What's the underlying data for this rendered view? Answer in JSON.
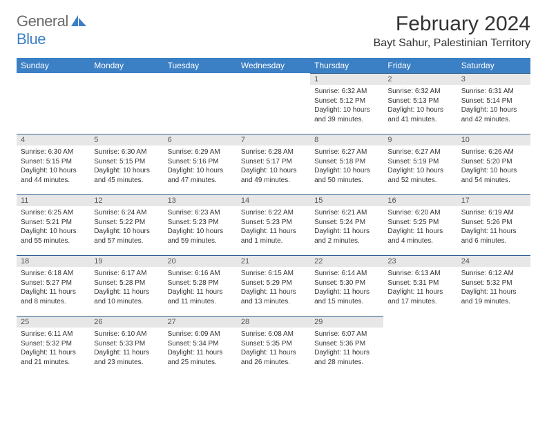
{
  "brand": {
    "general": "General",
    "blue": "Blue"
  },
  "title": "February 2024",
  "location": "Bayt Sahur, Palestinian Territory",
  "weekdays": [
    "Sunday",
    "Monday",
    "Tuesday",
    "Wednesday",
    "Thursday",
    "Friday",
    "Saturday"
  ],
  "style": {
    "header_bg": "#3b7fc4",
    "header_fg": "#ffffff",
    "dayhead_bg": "#e7e7e7",
    "body_bg": "#ffffff",
    "text": "#333333",
    "logo_gray": "#6b6b6b",
    "logo_blue": "#3b7fc4",
    "month_fontsize": 30,
    "location_fontsize": 16,
    "weekday_fontsize": 12,
    "daynum_fontsize": 11,
    "body_fontsize": 10
  },
  "grid": [
    [
      null,
      null,
      null,
      null,
      {
        "n": "1",
        "sr": "Sunrise: 6:32 AM",
        "ss": "Sunset: 5:12 PM",
        "dl": "Daylight: 10 hours and 39 minutes."
      },
      {
        "n": "2",
        "sr": "Sunrise: 6:32 AM",
        "ss": "Sunset: 5:13 PM",
        "dl": "Daylight: 10 hours and 41 minutes."
      },
      {
        "n": "3",
        "sr": "Sunrise: 6:31 AM",
        "ss": "Sunset: 5:14 PM",
        "dl": "Daylight: 10 hours and 42 minutes."
      }
    ],
    [
      {
        "n": "4",
        "sr": "Sunrise: 6:30 AM",
        "ss": "Sunset: 5:15 PM",
        "dl": "Daylight: 10 hours and 44 minutes."
      },
      {
        "n": "5",
        "sr": "Sunrise: 6:30 AM",
        "ss": "Sunset: 5:15 PM",
        "dl": "Daylight: 10 hours and 45 minutes."
      },
      {
        "n": "6",
        "sr": "Sunrise: 6:29 AM",
        "ss": "Sunset: 5:16 PM",
        "dl": "Daylight: 10 hours and 47 minutes."
      },
      {
        "n": "7",
        "sr": "Sunrise: 6:28 AM",
        "ss": "Sunset: 5:17 PM",
        "dl": "Daylight: 10 hours and 49 minutes."
      },
      {
        "n": "8",
        "sr": "Sunrise: 6:27 AM",
        "ss": "Sunset: 5:18 PM",
        "dl": "Daylight: 10 hours and 50 minutes."
      },
      {
        "n": "9",
        "sr": "Sunrise: 6:27 AM",
        "ss": "Sunset: 5:19 PM",
        "dl": "Daylight: 10 hours and 52 minutes."
      },
      {
        "n": "10",
        "sr": "Sunrise: 6:26 AM",
        "ss": "Sunset: 5:20 PM",
        "dl": "Daylight: 10 hours and 54 minutes."
      }
    ],
    [
      {
        "n": "11",
        "sr": "Sunrise: 6:25 AM",
        "ss": "Sunset: 5:21 PM",
        "dl": "Daylight: 10 hours and 55 minutes."
      },
      {
        "n": "12",
        "sr": "Sunrise: 6:24 AM",
        "ss": "Sunset: 5:22 PM",
        "dl": "Daylight: 10 hours and 57 minutes."
      },
      {
        "n": "13",
        "sr": "Sunrise: 6:23 AM",
        "ss": "Sunset: 5:23 PM",
        "dl": "Daylight: 10 hours and 59 minutes."
      },
      {
        "n": "14",
        "sr": "Sunrise: 6:22 AM",
        "ss": "Sunset: 5:23 PM",
        "dl": "Daylight: 11 hours and 1 minute."
      },
      {
        "n": "15",
        "sr": "Sunrise: 6:21 AM",
        "ss": "Sunset: 5:24 PM",
        "dl": "Daylight: 11 hours and 2 minutes."
      },
      {
        "n": "16",
        "sr": "Sunrise: 6:20 AM",
        "ss": "Sunset: 5:25 PM",
        "dl": "Daylight: 11 hours and 4 minutes."
      },
      {
        "n": "17",
        "sr": "Sunrise: 6:19 AM",
        "ss": "Sunset: 5:26 PM",
        "dl": "Daylight: 11 hours and 6 minutes."
      }
    ],
    [
      {
        "n": "18",
        "sr": "Sunrise: 6:18 AM",
        "ss": "Sunset: 5:27 PM",
        "dl": "Daylight: 11 hours and 8 minutes."
      },
      {
        "n": "19",
        "sr": "Sunrise: 6:17 AM",
        "ss": "Sunset: 5:28 PM",
        "dl": "Daylight: 11 hours and 10 minutes."
      },
      {
        "n": "20",
        "sr": "Sunrise: 6:16 AM",
        "ss": "Sunset: 5:28 PM",
        "dl": "Daylight: 11 hours and 11 minutes."
      },
      {
        "n": "21",
        "sr": "Sunrise: 6:15 AM",
        "ss": "Sunset: 5:29 PM",
        "dl": "Daylight: 11 hours and 13 minutes."
      },
      {
        "n": "22",
        "sr": "Sunrise: 6:14 AM",
        "ss": "Sunset: 5:30 PM",
        "dl": "Daylight: 11 hours and 15 minutes."
      },
      {
        "n": "23",
        "sr": "Sunrise: 6:13 AM",
        "ss": "Sunset: 5:31 PM",
        "dl": "Daylight: 11 hours and 17 minutes."
      },
      {
        "n": "24",
        "sr": "Sunrise: 6:12 AM",
        "ss": "Sunset: 5:32 PM",
        "dl": "Daylight: 11 hours and 19 minutes."
      }
    ],
    [
      {
        "n": "25",
        "sr": "Sunrise: 6:11 AM",
        "ss": "Sunset: 5:32 PM",
        "dl": "Daylight: 11 hours and 21 minutes."
      },
      {
        "n": "26",
        "sr": "Sunrise: 6:10 AM",
        "ss": "Sunset: 5:33 PM",
        "dl": "Daylight: 11 hours and 23 minutes."
      },
      {
        "n": "27",
        "sr": "Sunrise: 6:09 AM",
        "ss": "Sunset: 5:34 PM",
        "dl": "Daylight: 11 hours and 25 minutes."
      },
      {
        "n": "28",
        "sr": "Sunrise: 6:08 AM",
        "ss": "Sunset: 5:35 PM",
        "dl": "Daylight: 11 hours and 26 minutes."
      },
      {
        "n": "29",
        "sr": "Sunrise: 6:07 AM",
        "ss": "Sunset: 5:36 PM",
        "dl": "Daylight: 11 hours and 28 minutes."
      },
      null,
      null
    ]
  ]
}
